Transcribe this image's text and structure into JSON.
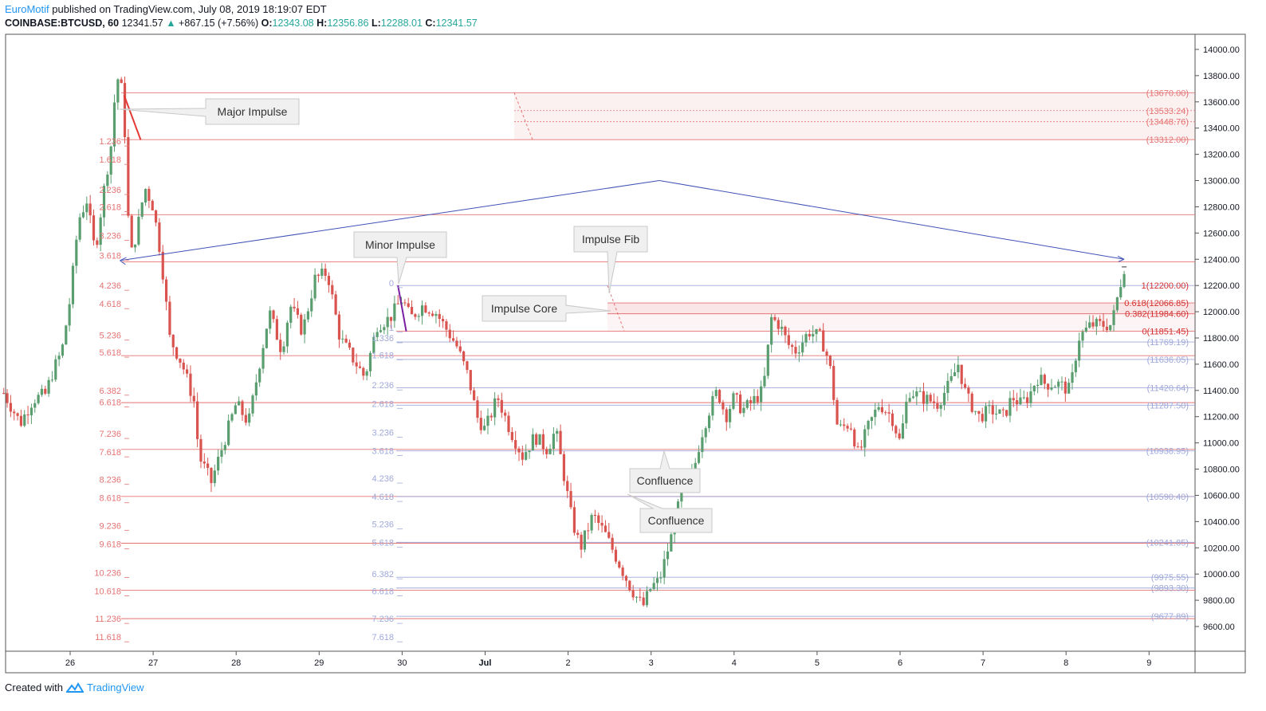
{
  "header": {
    "brand": "EuroMotif",
    "published": " published on TradingView.com, July 08, 2019 18:19:07 EDT",
    "symbol": "COINBASE:BTCUSD, 60",
    "last": "12341.57",
    "change": "+867.15 (+7.56%)",
    "open_label": "O:",
    "open": "12343.08",
    "high_label": "H:",
    "high": "12356.86",
    "low_label": "L:",
    "low": "12288.01",
    "close_label": "C:",
    "close": "12341.57"
  },
  "footer": {
    "created_with": "Created with",
    "brand": "TradingView",
    "logo_icon": "tradingview-logo-icon"
  },
  "colors": {
    "up": "#5a9e6f",
    "down": "#d9534f",
    "red_level": "#e57373",
    "blue_level": "#9fa8da",
    "trend": "#3f51b5",
    "impulse": "#e53935",
    "minor_impulse": "#7b1fa2"
  },
  "chart_data": {
    "type": "candlestick",
    "symbol": "COINBASE:BTCUSD",
    "timeframe": "60",
    "x_ticks": [
      {
        "label": "26",
        "t": 0
      },
      {
        "label": "27",
        "t": 1
      },
      {
        "label": "28",
        "t": 2
      },
      {
        "label": "29",
        "t": 3
      },
      {
        "label": "30",
        "t": 4
      },
      {
        "label": "Jul",
        "t": 5
      },
      {
        "label": "2",
        "t": 6
      },
      {
        "label": "3",
        "t": 7
      },
      {
        "label": "4",
        "t": 8
      },
      {
        "label": "5",
        "t": 9
      },
      {
        "label": "6",
        "t": 10
      },
      {
        "label": "7",
        "t": 11
      },
      {
        "label": "8",
        "t": 12
      },
      {
        "label": "9",
        "t": 13
      }
    ],
    "y_ticks": [
      "9600.00",
      "9800.00",
      "10000.00",
      "10200.00",
      "10400.00",
      "10600.00",
      "10800.00",
      "11000.00",
      "11200.00",
      "11400.00",
      "11600.00",
      "11800.00",
      "12000.00",
      "12200.00",
      "12400.00",
      "12600.00",
      "12800.00",
      "13000.00",
      "13200.00",
      "13400.00",
      "13600.00",
      "13800.00",
      "14000.00"
    ],
    "ylim": [
      9400,
      14100
    ],
    "xlim": [
      -0.8,
      13.6
    ],
    "last_price": 12341.57,
    "price_path": [
      [
        -0.8,
        11380
      ],
      [
        -0.6,
        11150
      ],
      [
        -0.45,
        11330
      ],
      [
        -0.3,
        11370
      ],
      [
        -0.2,
        11560
      ],
      [
        -0.1,
        11700
      ],
      [
        0.0,
        12100
      ],
      [
        0.1,
        12700
      ],
      [
        0.2,
        12850
      ],
      [
        0.3,
        12450
      ],
      [
        0.4,
        12900
      ],
      [
        0.5,
        13300
      ],
      [
        0.55,
        13750
      ],
      [
        0.6,
        13800
      ],
      [
        0.65,
        13500
      ],
      [
        0.72,
        12400
      ],
      [
        0.8,
        12600
      ],
      [
        0.9,
        12950
      ],
      [
        1.0,
        12800
      ],
      [
        1.1,
        12400
      ],
      [
        1.2,
        11800
      ],
      [
        1.35,
        11600
      ],
      [
        1.5,
        11300
      ],
      [
        1.55,
        10900
      ],
      [
        1.7,
        10700
      ],
      [
        1.85,
        11000
      ],
      [
        2.0,
        11300
      ],
      [
        2.15,
        11150
      ],
      [
        2.25,
        11500
      ],
      [
        2.4,
        12000
      ],
      [
        2.55,
        11700
      ],
      [
        2.65,
        12050
      ],
      [
        2.8,
        11850
      ],
      [
        2.95,
        12250
      ],
      [
        3.1,
        12300
      ],
      [
        3.25,
        11800
      ],
      [
        3.4,
        11650
      ],
      [
        3.55,
        11500
      ],
      [
        3.7,
        11900
      ],
      [
        3.85,
        11950
      ],
      [
        4.0,
        12100
      ],
      [
        4.1,
        11950
      ],
      [
        4.25,
        12050
      ],
      [
        4.4,
        12000
      ],
      [
        4.55,
        11850
      ],
      [
        4.65,
        11750
      ],
      [
        4.8,
        11500
      ],
      [
        4.9,
        11200
      ],
      [
        5.0,
        11100
      ],
      [
        5.15,
        11350
      ],
      [
        5.3,
        11100
      ],
      [
        5.45,
        10900
      ],
      [
        5.6,
        11050
      ],
      [
        5.75,
        10950
      ],
      [
        5.85,
        11100
      ],
      [
        5.95,
        10750
      ],
      [
        6.05,
        10400
      ],
      [
        6.15,
        10200
      ],
      [
        6.3,
        10450
      ],
      [
        6.45,
        10300
      ],
      [
        6.6,
        10100
      ],
      [
        6.75,
        9900
      ],
      [
        6.9,
        9750
      ],
      [
        7.0,
        9900
      ],
      [
        7.1,
        9950
      ],
      [
        7.25,
        10300
      ],
      [
        7.4,
        10700
      ],
      [
        7.5,
        10750
      ],
      [
        7.6,
        11050
      ],
      [
        7.7,
        11250
      ],
      [
        7.8,
        11400
      ],
      [
        7.9,
        11200
      ],
      [
        8.0,
        11350
      ],
      [
        8.1,
        11250
      ],
      [
        8.2,
        11300
      ],
      [
        8.35,
        11400
      ],
      [
        8.45,
        11950
      ],
      [
        8.55,
        11900
      ],
      [
        8.65,
        11750
      ],
      [
        8.75,
        11700
      ],
      [
        8.9,
        11850
      ],
      [
        9.05,
        11800
      ],
      [
        9.15,
        11600
      ],
      [
        9.25,
        11100
      ],
      [
        9.4,
        11150
      ],
      [
        9.5,
        10900
      ],
      [
        9.6,
        11100
      ],
      [
        9.75,
        11300
      ],
      [
        9.9,
        11200
      ],
      [
        10.0,
        11000
      ],
      [
        10.1,
        11400
      ],
      [
        10.25,
        11350
      ],
      [
        10.45,
        11300
      ],
      [
        10.6,
        11450
      ],
      [
        10.7,
        11600
      ],
      [
        10.8,
        11350
      ],
      [
        10.95,
        11200
      ],
      [
        11.1,
        11250
      ],
      [
        11.25,
        11200
      ],
      [
        11.35,
        11350
      ],
      [
        11.45,
        11300
      ],
      [
        11.55,
        11350
      ],
      [
        11.65,
        11500
      ],
      [
        11.75,
        11450
      ],
      [
        11.9,
        11450
      ],
      [
        12.05,
        11400
      ],
      [
        12.15,
        11800
      ],
      [
        12.3,
        11900
      ],
      [
        12.45,
        11900
      ],
      [
        12.55,
        11900
      ],
      [
        12.65,
        12200
      ],
      [
        12.7,
        12340
      ]
    ],
    "red_levels": [
      {
        "value": 13670,
        "label": "(13670.00)"
      },
      {
        "value": 13312,
        "label": "(13312.00)"
      },
      {
        "value": 12740,
        "label": ""
      },
      {
        "value": 12380,
        "label": ""
      },
      {
        "value": 11665,
        "label": ""
      },
      {
        "value": 11307,
        "label": ""
      },
      {
        "value": 10950,
        "label": ""
      },
      {
        "value": 10592,
        "label": ""
      },
      {
        "value": 10235,
        "label": ""
      },
      {
        "value": 9877,
        "label": ""
      },
      {
        "value": 9660,
        "label": ""
      }
    ],
    "zone_top": [
      {
        "value": 13533.24,
        "label": "(13533.24)"
      },
      {
        "value": 13448.76,
        "label": "(13448.76)"
      }
    ],
    "impulse_fib": [
      {
        "value": 12200.0,
        "label": "1(12200.00)"
      },
      {
        "value": 12066.85,
        "label": "0.618(12066.85)"
      },
      {
        "value": 11984.6,
        "label": "0.382(11984.60)"
      },
      {
        "value": 11851.45,
        "label": "0(11851.45)"
      }
    ],
    "blue_levels": [
      {
        "value": 11769.19,
        "label": "(11769.19)"
      },
      {
        "value": 11636.05,
        "label": "(11636.05)"
      },
      {
        "value": 11420.64,
        "label": "(11420.64)"
      },
      {
        "value": 11287.5,
        "label": "(11287.50)"
      },
      {
        "value": 10938.95,
        "label": "(10938.95)"
      },
      {
        "value": 10590.4,
        "label": "(10590.40)"
      },
      {
        "value": 10241.85,
        "label": "(10241.85)"
      },
      {
        "value": 9975.55,
        "label": "(9975.55)"
      },
      {
        "value": 9893.3,
        "label": "(9893.30)"
      },
      {
        "value": 9677.89,
        "label": "(9677.89)"
      }
    ],
    "major_fib_labels": [
      {
        "label": "1.236",
        "value": 13300
      },
      {
        "label": "1.618",
        "value": 13160
      },
      {
        "label": "2.236",
        "value": 12930
      },
      {
        "label": "2.618",
        "value": 12800
      },
      {
        "label": "3.236",
        "value": 12580
      },
      {
        "label": "3.618",
        "value": 12430
      },
      {
        "label": "4.236",
        "value": 12200
      },
      {
        "label": "4.618",
        "value": 12060
      },
      {
        "label": "5.236",
        "value": 11820
      },
      {
        "label": "5.618",
        "value": 11690
      },
      {
        "label": "6.382",
        "value": 11400
      },
      {
        "label": "6.618",
        "value": 11310
      },
      {
        "label": "7.236",
        "value": 11070
      },
      {
        "label": "7.618",
        "value": 10930
      },
      {
        "label": "8.236",
        "value": 10720
      },
      {
        "label": "8.618",
        "value": 10580
      },
      {
        "label": "9.236",
        "value": 10370
      },
      {
        "label": "9.618",
        "value": 10230
      },
      {
        "label": "10.236",
        "value": 10010
      },
      {
        "label": "10.618",
        "value": 9870
      },
      {
        "label": "11.236",
        "value": 9660
      },
      {
        "label": "11.618",
        "value": 9520
      }
    ],
    "minor_fib_labels": [
      {
        "label": "0",
        "value": 12220
      },
      {
        "label": "1",
        "value": 11880
      },
      {
        "label": "1.336",
        "value": 11800
      },
      {
        "label": "1.618",
        "value": 11670
      },
      {
        "label": "2.236",
        "value": 11440
      },
      {
        "label": "2.618",
        "value": 11300
      },
      {
        "label": "3.236",
        "value": 11080
      },
      {
        "label": "3.618",
        "value": 10940
      },
      {
        "label": "4.236",
        "value": 10730
      },
      {
        "label": "4.618",
        "value": 10590
      },
      {
        "label": "5.236",
        "value": 10380
      },
      {
        "label": "5.618",
        "value": 10240
      },
      {
        "label": "6.382",
        "value": 10000
      },
      {
        "label": "6.618",
        "value": 9870
      },
      {
        "label": "7.236",
        "value": 9660
      },
      {
        "label": "7.618",
        "value": 9520
      }
    ],
    "trend_lines": [
      [
        [
          0.6,
          12390
        ],
        [
          7.1,
          13000
        ]
      ],
      [
        [
          7.1,
          13000
        ],
        [
          12.7,
          12400
        ]
      ]
    ],
    "impulse_lines": {
      "major": [
        [
          0.65,
          13650
        ],
        [
          0.85,
          13310
        ]
      ],
      "minor": [
        [
          3.95,
          12200
        ],
        [
          4.05,
          11850
        ]
      ]
    },
    "annotations": [
      {
        "text": "Major Impulse",
        "id": "callout-major-impulse"
      },
      {
        "text": "Minor Impulse",
        "id": "callout-minor-impulse"
      },
      {
        "text": "Impulse Fib",
        "id": "callout-impulse-fib"
      },
      {
        "text": "Impulse Core",
        "id": "callout-impulse-core"
      },
      {
        "text": "Confluence",
        "id": "callout-confluence-1"
      },
      {
        "text": "Confluence",
        "id": "callout-confluence-2"
      }
    ]
  }
}
